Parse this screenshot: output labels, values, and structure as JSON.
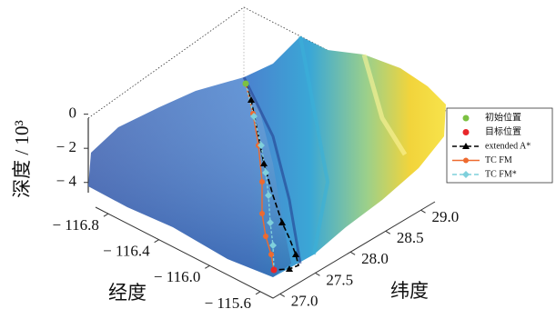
{
  "chart_data": {
    "type": "surface3d",
    "zlabel": "深度 / 10³",
    "xlabel": "经度",
    "ylabel": "纬度",
    "zticks": [
      0,
      {
        "value": -2,
        "label": "− 2"
      },
      {
        "value": -4,
        "label": "− 4"
      }
    ],
    "xticks": [
      {
        "value": -116.8,
        "label": "− 116.8"
      },
      {
        "value": -116.4,
        "label": "− 116.4"
      },
      {
        "value": -116.0,
        "label": "− 116.0"
      },
      {
        "value": -115.6,
        "label": "− 115.6"
      }
    ],
    "yticks": [
      {
        "value": 27.0,
        "label": "27.0"
      },
      {
        "value": 27.5,
        "label": "27.5"
      },
      {
        "value": 28.0,
        "label": "28.0"
      },
      {
        "value": 28.5,
        "label": "28.5"
      },
      {
        "value": 29.0,
        "label": "29.0"
      }
    ],
    "xlim": [
      -116.9,
      -115.5
    ],
    "ylim": [
      26.9,
      29.2
    ],
    "zlim": [
      -4.6,
      0.3
    ],
    "legend": [
      {
        "name": "初始位置",
        "color": "#7cc142",
        "marker": "dot"
      },
      {
        "name": "目标位置",
        "color": "#e8272a",
        "marker": "dot"
      },
      {
        "name": "extended A*",
        "color": "#000000",
        "marker": "triangle",
        "dash": true
      },
      {
        "name": "TC FM",
        "color": "#ee6a2f",
        "marker": "circle",
        "dash": false
      },
      {
        "name": "TC FM*",
        "color": "#7fd0dc",
        "marker": "diamond",
        "dash": true
      }
    ]
  }
}
